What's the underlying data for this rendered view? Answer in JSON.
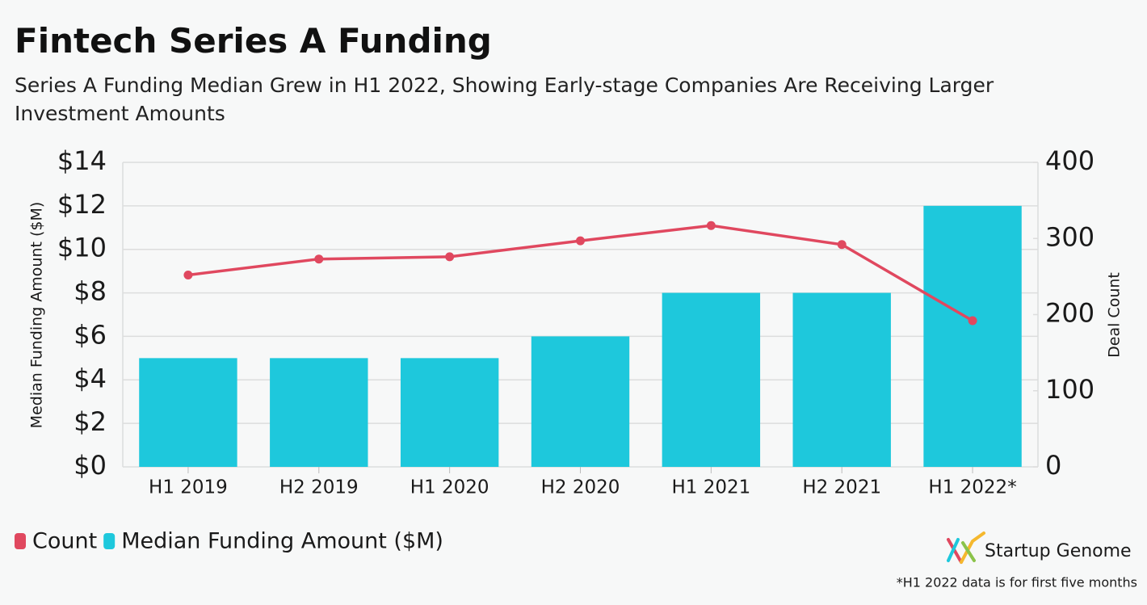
{
  "chart_data": {
    "type": "combo",
    "title": "Fintech Series A Funding",
    "subtitle": "Series A Funding Median Grew in H1 2022, Showing Early-stage Companies Are Receiving Larger Investment Amounts",
    "y_label": "Median Funding Amount ($M)",
    "y2_label": "Deal Count",
    "categories": [
      "H1 2019",
      "H2 2019",
      "H1 2020",
      "H2 2020",
      "H1 2021",
      "H2 2021",
      "H1 2022*"
    ],
    "series": [
      {
        "name": "Count",
        "kind": "line",
        "axis": "y2",
        "color": "#e0485f",
        "values": [
          252,
          273,
          276,
          297,
          317,
          292,
          192
        ]
      },
      {
        "name": "Median Funding Amount ($M)",
        "kind": "bar",
        "color": "#1ec8dc",
        "values": [
          5,
          5,
          5,
          6,
          8,
          8,
          12
        ]
      }
    ],
    "ylim": [
      0,
      14
    ],
    "yticks": [
      {
        "value": 0,
        "label": "$0"
      },
      {
        "value": 2,
        "label": "$2"
      },
      {
        "value": 4,
        "label": "$4"
      },
      {
        "value": 6,
        "label": "$6"
      },
      {
        "value": 8,
        "label": "$8"
      },
      {
        "value": 10,
        "label": "$10"
      },
      {
        "value": 12,
        "label": "$12"
      },
      {
        "value": 14,
        "label": "$14"
      }
    ],
    "y2lim": [
      0,
      400
    ],
    "y2ticks": [
      0,
      100,
      200,
      300,
      400
    ],
    "grid": true,
    "logo": "Startup Genome",
    "footnote": "*H1 2022 data is for first five months"
  }
}
